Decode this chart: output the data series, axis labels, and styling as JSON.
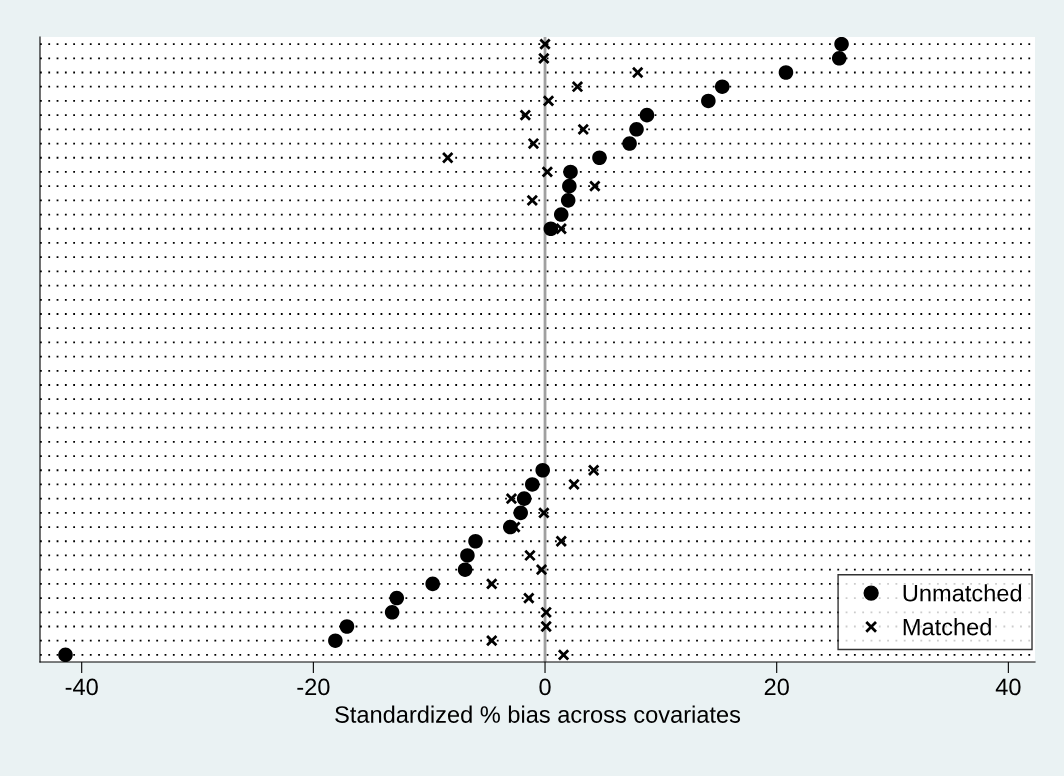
{
  "chart_data": {
    "type": "scatter",
    "orientation": "horizontal",
    "xlabel": "Standardized % bias across covariates",
    "categories": [
      null,
      null,
      null,
      null,
      null,
      null,
      null,
      null,
      null,
      null,
      null,
      null,
      null,
      null,
      null,
      null,
      null,
      null,
      null,
      null,
      null,
      null,
      null,
      null,
      null,
      null,
      null,
      null,
      null,
      null,
      null,
      null,
      null,
      null,
      null,
      null,
      null,
      null,
      null,
      null,
      null,
      null,
      null,
      null
    ],
    "series": [
      {
        "name": "Unmatched",
        "color": "#000000",
        "marker": "circle",
        "values": [
          25.6,
          25.4,
          20.8,
          15.3,
          14.1,
          8.8,
          7.9,
          7.3,
          4.7,
          2.2,
          2.1,
          2.0,
          1.4,
          0.5,
          null,
          null,
          null,
          null,
          null,
          null,
          null,
          null,
          null,
          null,
          null,
          null,
          null,
          null,
          null,
          null,
          -0.2,
          -1.1,
          -1.8,
          -2.1,
          -3.0,
          -6.0,
          -6.7,
          -6.9,
          -9.7,
          -12.8,
          -13.2,
          -17.1,
          -18.1,
          -41.4
        ]
      },
      {
        "name": "Matched",
        "color": "#000000",
        "marker": "cross",
        "values": [
          0.0,
          -0.1,
          8.0,
          2.8,
          0.3,
          -1.7,
          3.3,
          -1.0,
          -8.4,
          0.2,
          4.3,
          -1.1,
          null,
          1.4,
          null,
          null,
          null,
          null,
          null,
          null,
          null,
          null,
          null,
          null,
          null,
          null,
          null,
          null,
          null,
          null,
          4.2,
          2.5,
          -2.9,
          -0.1,
          -2.6,
          1.4,
          -1.3,
          -0.3,
          -4.6,
          -1.4,
          0.1,
          0.1,
          -4.6,
          1.6
        ]
      }
    ],
    "xlim": [
      -43.6,
      42.3
    ],
    "xticks": [
      -40,
      -20,
      0,
      20,
      40
    ],
    "ref_lines": [
      {
        "axis": "x",
        "value": 0,
        "color": "#a0a0a0"
      }
    ],
    "grid": "y",
    "legend": "bottom right",
    "tick_labels": "x"
  }
}
